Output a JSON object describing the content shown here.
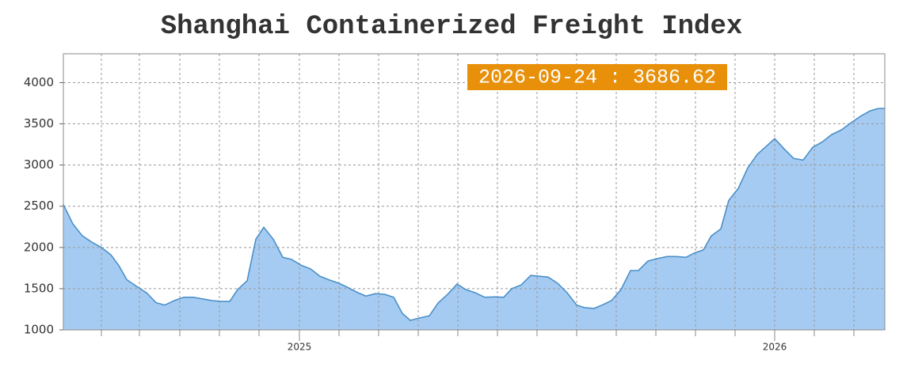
{
  "chart_data": {
    "type": "area",
    "title": "Shanghai Containerized Freight Index",
    "annotation": "2026-09-24 : 3686.62",
    "color": "#a6cbf2",
    "line_color": "#4a90c8",
    "grid": true,
    "x": [
      0,
      0.24,
      0.48,
      0.72,
      0.96,
      1.2,
      1.4,
      1.6,
      1.84,
      2.1,
      2.34,
      2.56,
      2.8,
      3.04,
      3.28,
      3.52,
      3.76,
      4.0,
      4.2,
      4.4,
      4.64,
      4.86,
      5.06,
      5.3,
      5.54,
      5.76,
      6.0,
      6.24,
      6.48,
      6.72,
      6.96,
      7.2,
      7.44,
      7.64,
      7.88,
      8.12,
      8.34,
      8.56,
      8.76,
      9.0,
      9.24,
      9.46,
      9.7,
      9.94,
      10.16,
      10.4,
      10.64,
      10.88,
      11.12,
      11.32,
      11.56,
      11.8,
      12.04,
      12.24,
      12.48,
      12.72,
      12.96,
      13.16,
      13.4,
      13.6,
      13.84,
      14.08,
      14.32,
      14.52,
      14.76,
      15.0,
      15.24,
      15.48,
      15.72,
      15.92,
      16.16,
      16.36,
      16.6,
      16.8,
      17.04,
      17.28,
      17.52,
      17.72,
      17.96,
      18.2,
      18.44,
      18.68,
      18.92,
      19.16,
      19.4,
      19.64,
      19.88,
      20.12,
      20.36,
      20.56,
      20.74
    ],
    "values": [
      2520,
      2285,
      2140,
      2064,
      2000,
      1910,
      1780,
      1610,
      1530,
      1450,
      1330,
      1300,
      1355,
      1395,
      1395,
      1375,
      1355,
      1345,
      1345,
      1490,
      1595,
      2100,
      2245,
      2100,
      1880,
      1855,
      1785,
      1740,
      1650,
      1605,
      1565,
      1510,
      1450,
      1410,
      1440,
      1430,
      1395,
      1200,
      1115,
      1145,
      1170,
      1325,
      1430,
      1555,
      1490,
      1450,
      1395,
      1400,
      1395,
      1500,
      1545,
      1660,
      1650,
      1640,
      1565,
      1450,
      1300,
      1270,
      1260,
      1300,
      1355,
      1490,
      1720,
      1720,
      1835,
      1865,
      1890,
      1890,
      1880,
      1930,
      1970,
      2140,
      2225,
      2570,
      2715,
      2965,
      3130,
      3215,
      3320,
      3195,
      3080,
      3060,
      3215,
      3280,
      3370,
      3425,
      3510,
      3590,
      3655,
      3685,
      3686.62
    ],
    "xlim": [
      0,
      20.74
    ],
    "xticks": [
      {
        "value": 5.96,
        "label": "2025"
      },
      {
        "value": 17.96,
        "label": "2026"
      }
    ],
    "xminorticks": [
      0.96,
      1.92,
      2.94,
      3.94,
      4.94,
      5.96,
      6.96,
      7.96,
      8.96,
      9.96,
      10.96,
      11.96,
      12.96,
      13.96,
      14.96,
      15.96,
      16.96,
      17.96,
      18.96,
      19.96
    ],
    "ylim": [
      1000,
      4350
    ],
    "yticks": [
      1000,
      1500,
      2000,
      2500,
      3000,
      3500,
      4000
    ]
  }
}
